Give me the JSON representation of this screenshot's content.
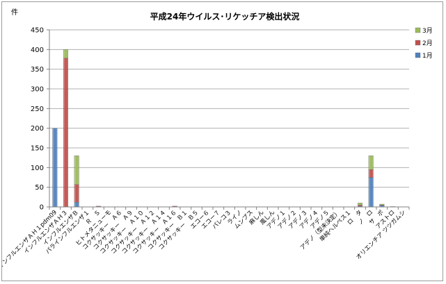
{
  "chart_data": {
    "type": "bar",
    "stacked": true,
    "title": "平成24年ウイルス･リケッチア検出状況",
    "ylabel": "件",
    "xlabel": "",
    "ylim": [
      0,
      450
    ],
    "yticks": [
      0,
      50,
      100,
      150,
      200,
      250,
      300,
      350,
      400,
      450
    ],
    "grid": true,
    "legend_position": "right",
    "categories": [
      "インフルエンザＡＨ１pdm09",
      "インフルエンザＡＨ３",
      "インフルエンザＢ",
      "パラインフルエンザ１",
      "Ｒ　Ｓ",
      "ヒトメタニューモ",
      "コクサッキー　Ａ６",
      "コクサッキー　Ａ９",
      "コクサッキー　Ａ１０",
      "コクサッキー　Ａ１２",
      "コクサッキー　Ａ１４",
      "コクサッキー　Ａ１６",
      "コクサッキー　Ｂ１",
      "コクサッキー　Ｂ５",
      "エコー６",
      "エコー７",
      "パレコ３",
      "ライノ",
      "ムンプス",
      "麻しん",
      "風しん",
      "アデノ１",
      "アデノ２",
      "アデノ３",
      "アデノ４",
      "アデノ５",
      "アデノ（型未決定）",
      "単純ヘルペス１",
      "ロ　タ",
      "ノ　ロ",
      "サ　ポ",
      "アストロ",
      "オリエンチア ツツガムシ"
    ],
    "series": [
      {
        "name": "1月",
        "color": "#4f81bd",
        "values": [
          200,
          0,
          12,
          0,
          1,
          0,
          0,
          0,
          0,
          0,
          0,
          1,
          0,
          0,
          0,
          0,
          0,
          0,
          0,
          0,
          0,
          0,
          0,
          0,
          0,
          0,
          0,
          0,
          2,
          75,
          4,
          0,
          0
        ]
      },
      {
        "name": "2月",
        "color": "#c0504d",
        "values": [
          0,
          378,
          45,
          0,
          1,
          0,
          0,
          0,
          0,
          0,
          0,
          1,
          0,
          0,
          0,
          0,
          0,
          0,
          0,
          0,
          0,
          0,
          0,
          0,
          0,
          0,
          0,
          0,
          3,
          20,
          1,
          0,
          0
        ]
      },
      {
        "name": "3月",
        "color": "#9bbb59",
        "values": [
          0,
          22,
          73,
          0,
          0,
          0,
          0,
          0,
          0,
          0,
          0,
          0,
          0,
          0,
          0,
          0,
          0,
          0,
          0,
          0,
          0,
          0,
          0,
          0,
          0,
          0,
          0,
          0,
          5,
          35,
          2,
          1,
          0
        ]
      }
    ],
    "legend_order": [
      "3月",
      "2月",
      "1月"
    ]
  }
}
